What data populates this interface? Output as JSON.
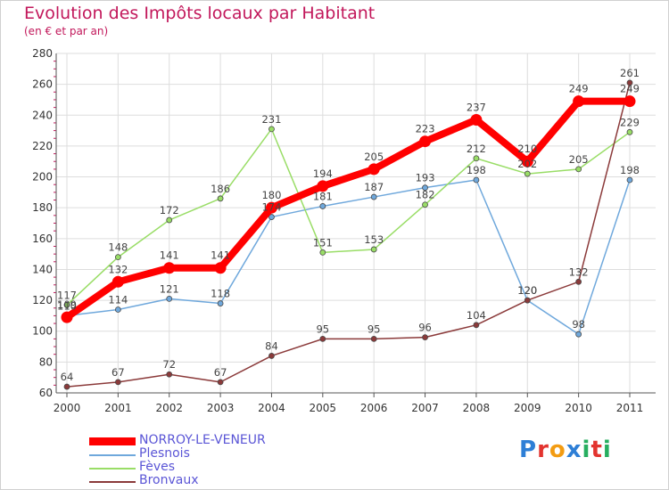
{
  "header": {
    "title": "Evolution des Impôts locaux par Habitant",
    "subtitle": "(en € et par an)"
  },
  "brand": {
    "text": "Proxiti",
    "letters": [
      {
        "ch": "P",
        "color": "#2e7fd6"
      },
      {
        "ch": "r",
        "color": "#e3342f"
      },
      {
        "ch": "o",
        "color": "#f39c12"
      },
      {
        "ch": "x",
        "color": "#2e7fd6"
      },
      {
        "ch": "i",
        "color": "#27ae60"
      },
      {
        "ch": "t",
        "color": "#e3342f"
      },
      {
        "ch": "i",
        "color": "#27ae60"
      }
    ]
  },
  "chart_data": {
    "type": "line",
    "title": "Evolution des Impôts locaux par Habitant",
    "subtitle": "(en € et par an)",
    "xlabel": "",
    "ylabel": "",
    "ylim": [
      60,
      280
    ],
    "yticks": [
      60,
      80,
      100,
      120,
      140,
      160,
      180,
      200,
      220,
      240,
      260,
      280
    ],
    "grid": true,
    "legend_position": "bottom-left",
    "x": [
      "2000",
      "2001",
      "2002",
      "2003",
      "2004",
      "2005",
      "2006",
      "2007",
      "2008",
      "2009",
      "2010",
      "2011"
    ],
    "series": [
      {
        "name": "NORROY-LE-VENEUR",
        "color": "#ff0000",
        "values": [
          109,
          132,
          141,
          141,
          180,
          194,
          205,
          223,
          237,
          210,
          249,
          249
        ]
      },
      {
        "name": "Plesnois",
        "color": "#6fa8dc",
        "values": [
          110,
          114,
          121,
          118,
          174,
          181,
          187,
          193,
          198,
          120,
          98,
          198
        ]
      },
      {
        "name": "Fèves",
        "color": "#99dd66",
        "values": [
          117,
          148,
          172,
          186,
          231,
          151,
          153,
          182,
          212,
          202,
          205,
          229
        ]
      },
      {
        "name": "Bronvaux",
        "color": "#8b3a3a",
        "values": [
          64,
          67,
          72,
          67,
          84,
          95,
          95,
          96,
          104,
          120,
          132,
          261
        ]
      }
    ]
  }
}
